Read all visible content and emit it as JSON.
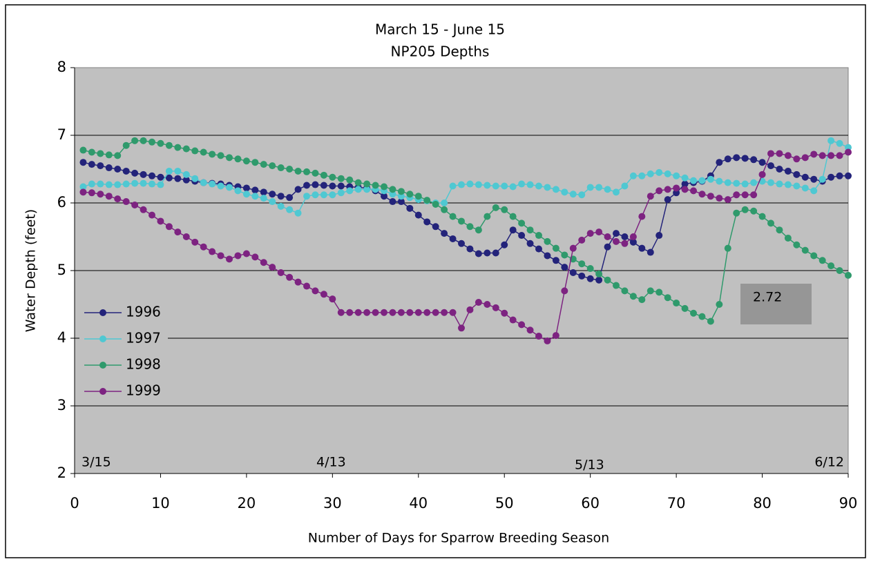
{
  "chart_data": {
    "type": "line",
    "title": "March 15 - June 15",
    "subtitle": "NP205 Depths",
    "x_label": "Number of Days for Sparrow Breeding Season",
    "y_label": "Water Depth (feet)",
    "xlim": [
      0,
      90
    ],
    "ylim": [
      2,
      8
    ],
    "xticks": [
      0,
      10,
      20,
      30,
      40,
      50,
      60,
      70,
      80,
      90
    ],
    "yticks": [
      2,
      3,
      4,
      5,
      6,
      7,
      8
    ],
    "grid": true,
    "legend": "left",
    "annotations": [
      "3/15",
      "4/13",
      "5/13",
      "6/12",
      "2.72"
    ],
    "x": [
      1,
      2,
      3,
      4,
      5,
      6,
      7,
      8,
      9,
      10,
      11,
      12,
      13,
      14,
      15,
      16,
      17,
      18,
      19,
      20,
      21,
      22,
      23,
      24,
      25,
      26,
      27,
      28,
      29,
      30,
      31,
      32,
      33,
      34,
      35,
      36,
      37,
      38,
      39,
      40,
      41,
      42,
      43,
      44,
      45,
      46,
      47,
      48,
      49,
      50,
      51,
      52,
      53,
      54,
      55,
      56,
      57,
      58,
      59,
      60,
      61,
      62,
      63,
      64,
      65,
      66,
      67,
      68,
      69,
      70,
      71,
      72,
      73,
      74,
      75,
      76,
      77,
      78,
      79,
      80,
      81,
      82,
      83,
      84,
      85,
      86,
      87,
      88,
      89,
      90
    ],
    "series": [
      {
        "name": "1996",
        "color": "#23237a",
        "values": [
          6.6,
          6.57,
          6.55,
          6.52,
          6.5,
          6.47,
          6.44,
          6.42,
          6.4,
          6.38,
          6.37,
          6.36,
          6.34,
          6.32,
          6.3,
          6.29,
          6.28,
          6.26,
          6.24,
          6.22,
          6.19,
          6.16,
          6.13,
          6.1,
          6.08,
          6.2,
          6.26,
          6.27,
          6.26,
          6.25,
          6.25,
          6.24,
          6.23,
          6.22,
          6.18,
          6.1,
          6.02,
          6.02,
          5.92,
          5.82,
          5.72,
          5.65,
          5.55,
          5.47,
          5.4,
          5.32,
          5.25,
          5.26,
          5.26,
          5.38,
          5.6,
          5.52,
          5.4,
          5.32,
          5.22,
          5.15,
          5.05,
          4.97,
          4.92,
          4.88,
          4.86,
          5.35,
          5.55,
          5.5,
          5.42,
          5.33,
          5.27,
          5.52,
          6.05,
          6.15,
          6.28,
          6.3,
          6.32,
          6.4,
          6.6,
          6.65,
          6.67,
          6.66,
          6.64,
          6.6,
          6.55,
          6.5,
          6.47,
          6.42,
          6.38,
          6.35,
          6.32,
          6.38,
          6.4,
          6.4
        ]
      },
      {
        "name": "1997",
        "color": "#4fc8d2",
        "values": [
          6.24,
          6.28,
          6.28,
          6.27,
          6.27,
          6.28,
          6.29,
          6.29,
          6.28,
          6.27,
          6.47,
          6.47,
          6.42,
          6.36,
          6.3,
          6.28,
          6.25,
          6.23,
          6.18,
          6.13,
          6.1,
          6.07,
          6.02,
          5.95,
          5.9,
          5.85,
          6.1,
          6.12,
          6.12,
          6.12,
          6.15,
          6.18,
          6.2,
          6.2,
          6.2,
          6.18,
          6.13,
          6.1,
          6.08,
          6.05,
          6.03,
          6.0,
          6.0,
          6.25,
          6.27,
          6.28,
          6.27,
          6.26,
          6.25,
          6.25,
          6.24,
          6.28,
          6.27,
          6.25,
          6.23,
          6.2,
          6.16,
          6.13,
          6.12,
          6.23,
          6.23,
          6.2,
          6.16,
          6.25,
          6.4,
          6.4,
          6.43,
          6.45,
          6.43,
          6.4,
          6.37,
          6.33,
          6.33,
          6.35,
          6.32,
          6.3,
          6.29,
          6.28,
          6.3,
          6.32,
          6.3,
          6.28,
          6.27,
          6.25,
          6.22,
          6.18,
          6.35,
          6.92,
          6.88,
          6.82
        ]
      },
      {
        "name": "1998",
        "color": "#2f9a6c",
        "values": [
          6.78,
          6.75,
          6.73,
          6.71,
          6.7,
          6.85,
          6.92,
          6.92,
          6.9,
          6.88,
          6.85,
          6.82,
          6.8,
          6.77,
          6.75,
          6.72,
          6.7,
          6.67,
          6.65,
          6.62,
          6.6,
          6.57,
          6.55,
          6.52,
          6.5,
          6.47,
          6.46,
          6.44,
          6.41,
          6.38,
          6.36,
          6.34,
          6.3,
          6.28,
          6.26,
          6.24,
          6.2,
          6.17,
          6.13,
          6.1,
          6.04,
          5.98,
          5.9,
          5.8,
          5.73,
          5.65,
          5.6,
          5.8,
          5.93,
          5.9,
          5.8,
          5.7,
          5.6,
          5.52,
          5.43,
          5.33,
          5.23,
          5.17,
          5.1,
          5.03,
          4.95,
          4.86,
          4.78,
          4.7,
          4.62,
          4.57,
          4.7,
          4.68,
          4.6,
          4.52,
          4.44,
          4.37,
          4.32,
          4.25,
          4.5,
          5.33,
          5.85,
          5.9,
          5.88,
          5.8,
          5.7,
          5.6,
          5.48,
          5.38,
          5.3,
          5.22,
          5.15,
          5.07,
          5.0,
          4.93
        ]
      },
      {
        "name": "1999",
        "color": "#7d2381",
        "values": [
          6.16,
          6.15,
          6.13,
          6.1,
          6.06,
          6.02,
          5.97,
          5.9,
          5.82,
          5.73,
          5.65,
          5.57,
          5.5,
          5.42,
          5.35,
          5.28,
          5.22,
          5.17,
          5.22,
          5.25,
          5.2,
          5.12,
          5.05,
          4.97,
          4.9,
          4.83,
          4.77,
          4.7,
          4.65,
          4.58,
          4.38,
          4.38,
          4.38,
          4.38,
          4.38,
          4.38,
          4.38,
          4.38,
          4.38,
          4.38,
          4.38,
          4.38,
          4.38,
          4.38,
          4.15,
          4.42,
          4.53,
          4.5,
          4.45,
          4.37,
          4.27,
          4.2,
          4.12,
          4.03,
          3.96,
          4.04,
          4.7,
          5.33,
          5.45,
          5.55,
          5.57,
          5.5,
          5.43,
          5.4,
          5.5,
          5.8,
          6.1,
          6.18,
          6.2,
          6.22,
          6.2,
          6.18,
          6.13,
          6.1,
          6.07,
          6.05,
          6.12,
          6.12,
          6.12,
          6.42,
          6.73,
          6.73,
          6.7,
          6.65,
          6.67,
          6.72,
          6.7,
          6.7,
          6.7,
          6.75
        ]
      }
    ]
  }
}
